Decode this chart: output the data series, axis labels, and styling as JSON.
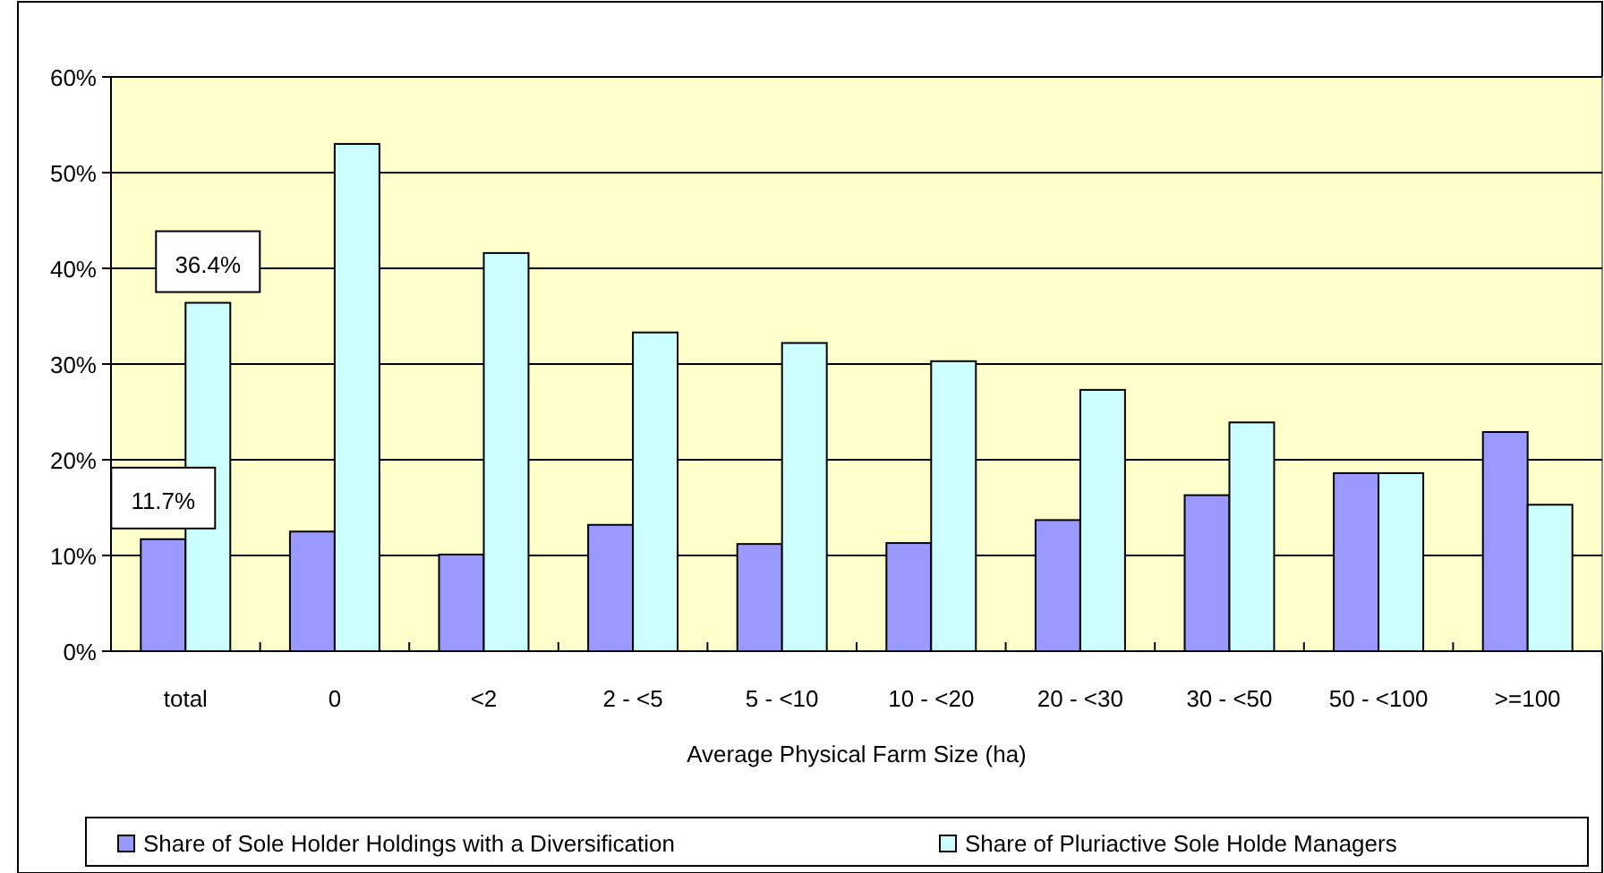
{
  "chart_data": {
    "type": "bar",
    "xlabel": "Average Physical Farm Size (ha)",
    "categories": [
      "total",
      "0",
      "<2",
      "2 - <5",
      "5 - <10",
      "10 - <20",
      "20 - <30",
      "30 - <50",
      "50 - <100",
      ">=100"
    ],
    "series": [
      {
        "name": "Share of Sole Holder Holdings with a Diversification",
        "color": "#9999ff",
        "values": [
          11.7,
          12.5,
          10.1,
          13.2,
          11.2,
          11.3,
          13.7,
          16.3,
          18.6,
          22.9
        ],
        "value_labels": [
          "11.7%",
          null,
          null,
          null,
          null,
          null,
          null,
          null,
          null,
          null
        ]
      },
      {
        "name": "Share of Pluriactive Sole Holde Managers",
        "color": "#ccffff",
        "values": [
          36.4,
          53.0,
          41.6,
          33.3,
          32.2,
          30.3,
          27.3,
          23.9,
          18.6,
          15.3
        ],
        "value_labels": [
          "36.4%",
          null,
          null,
          null,
          null,
          null,
          null,
          null,
          null,
          null
        ]
      }
    ],
    "ylim": [
      0,
      60
    ],
    "yticks": [
      {
        "value": 0,
        "label": "0%"
      },
      {
        "value": 10,
        "label": "10%"
      },
      {
        "value": 20,
        "label": "20%"
      },
      {
        "value": 30,
        "label": "30%"
      },
      {
        "value": 40,
        "label": "40%"
      },
      {
        "value": 50,
        "label": "50%"
      },
      {
        "value": 60,
        "label": "60%"
      }
    ],
    "grid": "y",
    "legend": "bottom"
  }
}
